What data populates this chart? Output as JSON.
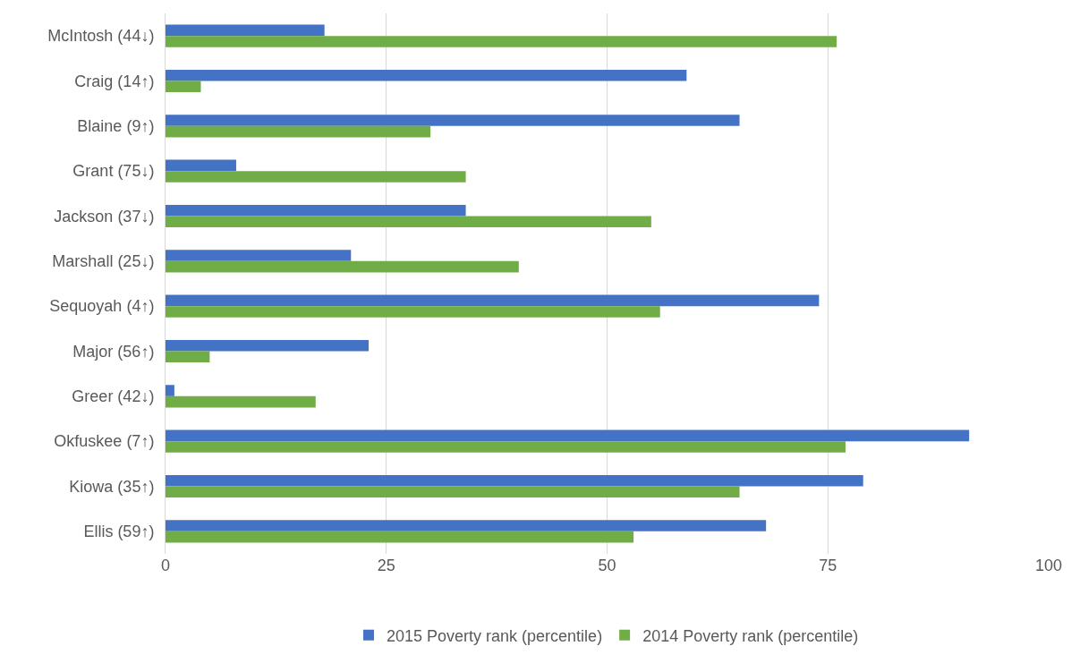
{
  "chart_data": {
    "type": "bar",
    "orientation": "horizontal",
    "categories": [
      "McIntosh (44↓)",
      "Craig (14↑)",
      "Blaine (9↑)",
      "Grant (75↓)",
      "Jackson (37↓)",
      "Marshall (25↓)",
      "Sequoyah (4↑)",
      "Major (56↑)",
      "Greer (42↓)",
      "Okfuskee (7↑)",
      "Kiowa (35↑)",
      "Ellis (59↑)"
    ],
    "series": [
      {
        "name": "2015 Poverty rank (percentile)",
        "color": "#4472c4",
        "values": [
          18,
          59,
          65,
          8,
          34,
          21,
          74,
          23,
          1,
          91,
          79,
          68
        ]
      },
      {
        "name": "2014 Poverty rank (percentile)",
        "color": "#70ad47",
        "values": [
          76,
          4,
          30,
          34,
          55,
          40,
          56,
          5,
          17,
          77,
          65,
          53
        ]
      }
    ],
    "xlim": [
      0,
      100
    ],
    "xticks": [
      0,
      25,
      50,
      75,
      100
    ],
    "grid": "x",
    "legend": "bottom"
  }
}
